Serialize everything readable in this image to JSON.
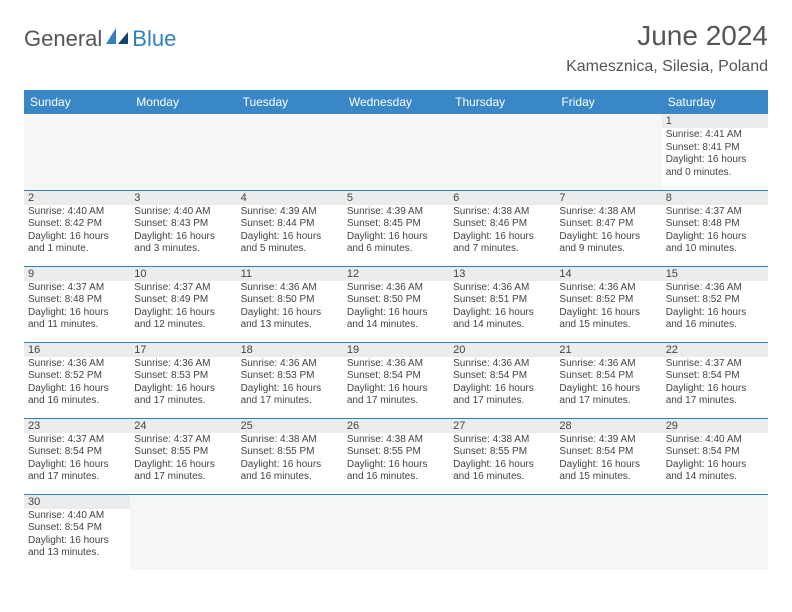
{
  "brand": {
    "part1": "General",
    "part2": "Blue"
  },
  "title": "June 2024",
  "location": "Kamesznica, Silesia, Poland",
  "colors": {
    "header_bg": "#3a87c8",
    "header_fg": "#ffffff",
    "grid_line": "#2f7fbf",
    "daynum_bg": "#ececec",
    "text": "#444444"
  },
  "days": [
    "Sunday",
    "Monday",
    "Tuesday",
    "Wednesday",
    "Thursday",
    "Friday",
    "Saturday"
  ],
  "weeks": [
    [
      null,
      null,
      null,
      null,
      null,
      null,
      {
        "n": "1",
        "sr": "Sunrise: 4:41 AM",
        "ss": "Sunset: 8:41 PM",
        "dl": "Daylight: 16 hours and 0 minutes."
      }
    ],
    [
      {
        "n": "2",
        "sr": "Sunrise: 4:40 AM",
        "ss": "Sunset: 8:42 PM",
        "dl": "Daylight: 16 hours and 1 minute."
      },
      {
        "n": "3",
        "sr": "Sunrise: 4:40 AM",
        "ss": "Sunset: 8:43 PM",
        "dl": "Daylight: 16 hours and 3 minutes."
      },
      {
        "n": "4",
        "sr": "Sunrise: 4:39 AM",
        "ss": "Sunset: 8:44 PM",
        "dl": "Daylight: 16 hours and 5 minutes."
      },
      {
        "n": "5",
        "sr": "Sunrise: 4:39 AM",
        "ss": "Sunset: 8:45 PM",
        "dl": "Daylight: 16 hours and 6 minutes."
      },
      {
        "n": "6",
        "sr": "Sunrise: 4:38 AM",
        "ss": "Sunset: 8:46 PM",
        "dl": "Daylight: 16 hours and 7 minutes."
      },
      {
        "n": "7",
        "sr": "Sunrise: 4:38 AM",
        "ss": "Sunset: 8:47 PM",
        "dl": "Daylight: 16 hours and 9 minutes."
      },
      {
        "n": "8",
        "sr": "Sunrise: 4:37 AM",
        "ss": "Sunset: 8:48 PM",
        "dl": "Daylight: 16 hours and 10 minutes."
      }
    ],
    [
      {
        "n": "9",
        "sr": "Sunrise: 4:37 AM",
        "ss": "Sunset: 8:48 PM",
        "dl": "Daylight: 16 hours and 11 minutes."
      },
      {
        "n": "10",
        "sr": "Sunrise: 4:37 AM",
        "ss": "Sunset: 8:49 PM",
        "dl": "Daylight: 16 hours and 12 minutes."
      },
      {
        "n": "11",
        "sr": "Sunrise: 4:36 AM",
        "ss": "Sunset: 8:50 PM",
        "dl": "Daylight: 16 hours and 13 minutes."
      },
      {
        "n": "12",
        "sr": "Sunrise: 4:36 AM",
        "ss": "Sunset: 8:50 PM",
        "dl": "Daylight: 16 hours and 14 minutes."
      },
      {
        "n": "13",
        "sr": "Sunrise: 4:36 AM",
        "ss": "Sunset: 8:51 PM",
        "dl": "Daylight: 16 hours and 14 minutes."
      },
      {
        "n": "14",
        "sr": "Sunrise: 4:36 AM",
        "ss": "Sunset: 8:52 PM",
        "dl": "Daylight: 16 hours and 15 minutes."
      },
      {
        "n": "15",
        "sr": "Sunrise: 4:36 AM",
        "ss": "Sunset: 8:52 PM",
        "dl": "Daylight: 16 hours and 16 minutes."
      }
    ],
    [
      {
        "n": "16",
        "sr": "Sunrise: 4:36 AM",
        "ss": "Sunset: 8:52 PM",
        "dl": "Daylight: 16 hours and 16 minutes."
      },
      {
        "n": "17",
        "sr": "Sunrise: 4:36 AM",
        "ss": "Sunset: 8:53 PM",
        "dl": "Daylight: 16 hours and 17 minutes."
      },
      {
        "n": "18",
        "sr": "Sunrise: 4:36 AM",
        "ss": "Sunset: 8:53 PM",
        "dl": "Daylight: 16 hours and 17 minutes."
      },
      {
        "n": "19",
        "sr": "Sunrise: 4:36 AM",
        "ss": "Sunset: 8:54 PM",
        "dl": "Daylight: 16 hours and 17 minutes."
      },
      {
        "n": "20",
        "sr": "Sunrise: 4:36 AM",
        "ss": "Sunset: 8:54 PM",
        "dl": "Daylight: 16 hours and 17 minutes."
      },
      {
        "n": "21",
        "sr": "Sunrise: 4:36 AM",
        "ss": "Sunset: 8:54 PM",
        "dl": "Daylight: 16 hours and 17 minutes."
      },
      {
        "n": "22",
        "sr": "Sunrise: 4:37 AM",
        "ss": "Sunset: 8:54 PM",
        "dl": "Daylight: 16 hours and 17 minutes."
      }
    ],
    [
      {
        "n": "23",
        "sr": "Sunrise: 4:37 AM",
        "ss": "Sunset: 8:54 PM",
        "dl": "Daylight: 16 hours and 17 minutes."
      },
      {
        "n": "24",
        "sr": "Sunrise: 4:37 AM",
        "ss": "Sunset: 8:55 PM",
        "dl": "Daylight: 16 hours and 17 minutes."
      },
      {
        "n": "25",
        "sr": "Sunrise: 4:38 AM",
        "ss": "Sunset: 8:55 PM",
        "dl": "Daylight: 16 hours and 16 minutes."
      },
      {
        "n": "26",
        "sr": "Sunrise: 4:38 AM",
        "ss": "Sunset: 8:55 PM",
        "dl": "Daylight: 16 hours and 16 minutes."
      },
      {
        "n": "27",
        "sr": "Sunrise: 4:38 AM",
        "ss": "Sunset: 8:55 PM",
        "dl": "Daylight: 16 hours and 16 minutes."
      },
      {
        "n": "28",
        "sr": "Sunrise: 4:39 AM",
        "ss": "Sunset: 8:54 PM",
        "dl": "Daylight: 16 hours and 15 minutes."
      },
      {
        "n": "29",
        "sr": "Sunrise: 4:40 AM",
        "ss": "Sunset: 8:54 PM",
        "dl": "Daylight: 16 hours and 14 minutes."
      }
    ],
    [
      {
        "n": "30",
        "sr": "Sunrise: 4:40 AM",
        "ss": "Sunset: 8:54 PM",
        "dl": "Daylight: 16 hours and 13 minutes."
      },
      null,
      null,
      null,
      null,
      null,
      null
    ]
  ]
}
